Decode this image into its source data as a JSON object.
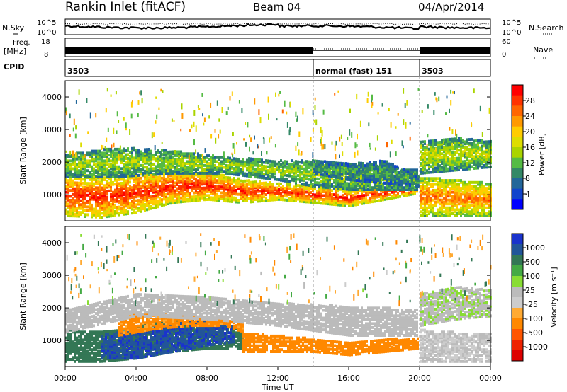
{
  "header": {
    "station": "Rankin Inlet (fitACF)",
    "beam": "Beam 04",
    "date": "04/Apr/2014"
  },
  "strip": {
    "nsky_label": "N.Sky",
    "nsearch_label": "N.Search",
    "freq_label_1": "Freq.",
    "freq_label_2": "[MHz]",
    "nave_label": "Nave",
    "cpid_label": "CPID",
    "left_ticks_top": [
      "10^5",
      "10^0"
    ],
    "right_ticks_top": [
      "10^5",
      "10^0"
    ],
    "freq_ticks": [
      "18",
      "8"
    ],
    "nave_ticks": [
      "60",
      "0"
    ],
    "cpid_segments": [
      {
        "label": "3503",
        "start": 0,
        "end": 14
      },
      {
        "label": "normal (fast) 151",
        "start": 14,
        "end": 20
      },
      {
        "label": "3503",
        "start": 20,
        "end": 24
      }
    ]
  },
  "colorbars": {
    "power": {
      "label": "Power [dB]",
      "ticks": [
        "28",
        "24",
        "20",
        "16",
        "12",
        "8",
        "4"
      ],
      "colors": [
        "#ff0000",
        "#ff3300",
        "#ff6600",
        "#ff9900",
        "#ffcc00",
        "#dddd00",
        "#aad400",
        "#55bb44",
        "#338866",
        "#226699",
        "#1144cc",
        "#0000ff"
      ]
    },
    "velocity": {
      "label": "Velocity [m s⁻¹]",
      "ticks": [
        "1000",
        "500",
        "100",
        "25",
        "-25",
        "-100",
        "-500",
        "-1000"
      ],
      "colors": [
        "#1a33cc",
        "#225599",
        "#337755",
        "#44aa44",
        "#88dd33",
        "#bbbbbb",
        "#cccccc",
        "#ffaa33",
        "#ff8800",
        "#ff5500",
        "#ee2200",
        "#dd0000"
      ]
    }
  },
  "chart_data": [
    {
      "type": "heatmap",
      "name": "Power",
      "xlabel": "",
      "ylabel": "Slant Range [km]",
      "xlim": [
        0,
        24
      ],
      "ylim": [
        200,
        4500
      ],
      "yticks": [
        "4000",
        "3000",
        "2000",
        "1000"
      ],
      "zlabel": "Power [dB]",
      "zlim": [
        0,
        30
      ],
      "echo_bands": [
        {
          "t": [
            0,
            2,
            4,
            6,
            8,
            10,
            12,
            14,
            16,
            18,
            19.9
          ],
          "lo": [
            400,
            350,
            500,
            800,
            900,
            800,
            900,
            800,
            700,
            900,
            1100
          ],
          "hi": [
            1700,
            1600,
            1700,
            1800,
            1750,
            1500,
            1400,
            1300,
            1200,
            1300,
            1300
          ],
          "db": 26
        },
        {
          "t": [
            0,
            3,
            6,
            9,
            12,
            14,
            16,
            18,
            19.9
          ],
          "lo": [
            1600,
            1600,
            1700,
            1700,
            1500,
            1300,
            1200,
            1200,
            1200
          ],
          "hi": [
            2300,
            2500,
            2400,
            2200,
            2100,
            2100,
            2000,
            1900,
            1800
          ],
          "db": 13
        },
        {
          "t": [
            14,
            16,
            18,
            19.9
          ],
          "lo": [
            1700,
            1500,
            1400,
            1300
          ],
          "hi": [
            2100,
            2000,
            2100,
            1600
          ],
          "db": 9
        },
        {
          "t": [
            20,
            22,
            24
          ],
          "lo": [
            400,
            400,
            400
          ],
          "hi": [
            1600,
            1500,
            1400
          ],
          "db": 22
        },
        {
          "t": [
            20,
            22,
            24
          ],
          "lo": [
            1700,
            1800,
            1900
          ],
          "hi": [
            2700,
            2800,
            2700
          ],
          "db": 14
        }
      ]
    },
    {
      "type": "heatmap",
      "name": "Velocity",
      "xlabel": "Time UT",
      "ylabel": "Slant Range [km]",
      "xlim": [
        0,
        24
      ],
      "ylim": [
        200,
        4500
      ],
      "xticks": [
        "00:00",
        "04:00",
        "08:00",
        "12:00",
        "16:00",
        "20:00",
        "00:00"
      ],
      "yticks": [
        "4000",
        "3000",
        "2000",
        "1000"
      ],
      "zlabel": "Velocity [m s⁻¹]",
      "zlim": [
        -1000,
        1000
      ],
      "echo_bands": [
        {
          "t": [
            0,
            2,
            4,
            6,
            8,
            10
          ],
          "lo": [
            400,
            400,
            500,
            700,
            800,
            800
          ],
          "hi": [
            1400,
            1300,
            1500,
            1700,
            1600,
            1400
          ],
          "v": 150
        },
        {
          "t": [
            2,
            4,
            6,
            8,
            9.5
          ],
          "lo": [
            500,
            500,
            700,
            900,
            1000
          ],
          "hi": [
            1200,
            1400,
            1600,
            1700,
            1500
          ],
          "v": 700
        },
        {
          "t": [
            3,
            5,
            7,
            9,
            10
          ],
          "lo": [
            1200,
            1400,
            1500,
            1500,
            1300
          ],
          "hi": [
            1800,
            1900,
            1800,
            1700,
            1600
          ],
          "v": -200
        },
        {
          "t": [
            10,
            12,
            14,
            16,
            18,
            19.9
          ],
          "lo": [
            700,
            700,
            700,
            600,
            700,
            800
          ],
          "hi": [
            1300,
            1200,
            1100,
            1000,
            1100,
            1100
          ],
          "v": -300
        },
        {
          "t": [
            0,
            4,
            8,
            12,
            16,
            19.9
          ],
          "lo": [
            1300,
            1800,
            1700,
            1500,
            1200,
            1200
          ],
          "hi": [
            2000,
            2500,
            2400,
            2200,
            2100,
            2000
          ],
          "v": 0
        },
        {
          "t": [
            20,
            22,
            24
          ],
          "lo": [
            400,
            400,
            400
          ],
          "hi": [
            1400,
            1300,
            1300
          ],
          "v": -10
        },
        {
          "t": [
            20,
            22,
            24
          ],
          "lo": [
            1500,
            1700,
            1800
          ],
          "hi": [
            2500,
            2700,
            2600
          ],
          "v": 5
        }
      ]
    }
  ]
}
